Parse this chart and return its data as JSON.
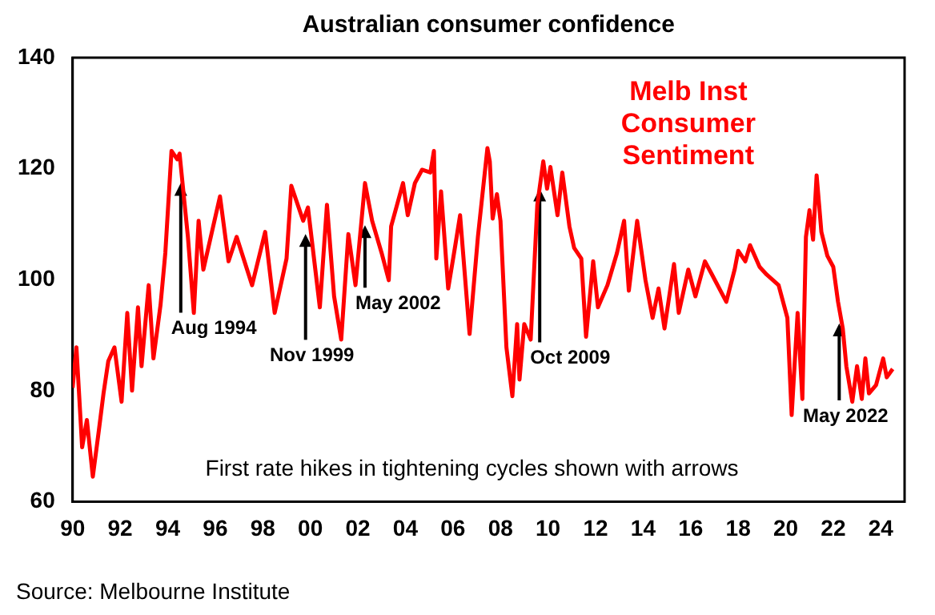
{
  "chart_data": {
    "type": "line",
    "title": "Australian consumer confidence",
    "x": [
      1990.0,
      1990.16,
      1990.4,
      1990.6,
      1990.85,
      1991.1,
      1991.3,
      1991.5,
      1991.76,
      1992.06,
      1992.3,
      1992.5,
      1992.75,
      1992.9,
      1993.2,
      1993.4,
      1993.7,
      1993.9,
      1994.16,
      1994.4,
      1994.5,
      1994.85,
      1995.1,
      1995.3,
      1995.5,
      1996.2,
      1996.56,
      1996.9,
      1997.55,
      1998.1,
      1998.5,
      1999.0,
      1999.2,
      1999.7,
      1999.9,
      2000.4,
      2000.7,
      2001.0,
      2001.3,
      2001.6,
      2001.9,
      2002.3,
      2002.6,
      2003.0,
      2003.3,
      2003.4,
      2003.9,
      2004.1,
      2004.4,
      2004.7,
      2005.05,
      2005.2,
      2005.3,
      2005.5,
      2005.8,
      2006.1,
      2006.3,
      2006.7,
      2007.05,
      2007.45,
      2007.55,
      2007.67,
      2007.85,
      2008.0,
      2008.25,
      2008.5,
      2008.7,
      2008.8,
      2009.0,
      2009.27,
      2009.55,
      2009.8,
      2009.96,
      2010.1,
      2010.4,
      2010.6,
      2010.9,
      2011.1,
      2011.4,
      2011.6,
      2011.9,
      2012.1,
      2012.5,
      2012.9,
      2013.2,
      2013.4,
      2013.75,
      2014.1,
      2014.4,
      2014.65,
      2014.9,
      2015.3,
      2015.5,
      2015.9,
      2016.2,
      2016.6,
      2016.9,
      2017.5,
      2017.85,
      2018.0,
      2018.3,
      2018.5,
      2018.9,
      2019.2,
      2019.7,
      2020.07,
      2020.25,
      2020.5,
      2020.7,
      2020.85,
      2021.0,
      2021.15,
      2021.3,
      2021.5,
      2021.75,
      2022.0,
      2022.2,
      2022.4,
      2022.55,
      2022.8,
      2023.0,
      2023.2,
      2023.35,
      2023.5,
      2023.8,
      2024.1,
      2024.25,
      2024.5
    ],
    "series": [
      {
        "name": "Melb Inst Consumer Sentiment",
        "color": "#ff0000",
        "values": [
          80.5,
          87.8,
          69.8,
          74.7,
          64.5,
          72.7,
          79.5,
          85.3,
          87.8,
          78,
          94,
          80,
          95,
          84.4,
          99,
          85.8,
          95.5,
          104.8,
          123.2,
          121.7,
          122.7,
          107.7,
          94,
          110.6,
          101.8,
          115,
          103.3,
          107.7,
          99,
          108.6,
          94,
          103.8,
          116.9,
          110.6,
          113,
          95,
          113.5,
          97,
          89.2,
          108.2,
          99,
          117.4,
          110.6,
          104.8,
          99.9,
          109.6,
          117.4,
          111.6,
          117.4,
          119.8,
          119.3,
          123.2,
          103.8,
          115.9,
          98.4,
          106.2,
          111.6,
          90.2,
          107.7,
          123.7,
          121.3,
          111,
          115.4,
          110.6,
          87.8,
          79,
          92,
          82,
          92,
          89.2,
          113.5,
          121.3,
          116.4,
          120.3,
          111.6,
          119.3,
          109.6,
          105.7,
          103.8,
          89.7,
          103.3,
          95,
          99,
          104.8,
          110.6,
          98,
          110.6,
          99.9,
          93.1,
          98.4,
          91.2,
          102.8,
          94,
          101.8,
          97,
          103.3,
          100.9,
          96,
          101.8,
          105.2,
          103.3,
          106.2,
          102.3,
          100.9,
          99,
          93.1,
          75.6,
          94,
          78.5,
          107.7,
          112.5,
          107.2,
          118.8,
          108.6,
          104.3,
          102.3,
          96,
          91.2,
          84.4,
          78,
          84.4,
          78.5,
          85.8,
          79.5,
          81,
          85.8,
          82.4,
          83.9
        ]
      }
    ],
    "xlim": [
      1990,
      2025
    ],
    "xticks": [
      {
        "value": 1990,
        "label": "90"
      },
      {
        "value": 1992,
        "label": "92"
      },
      {
        "value": 1994,
        "label": "94"
      },
      {
        "value": 1996,
        "label": "96"
      },
      {
        "value": 1998,
        "label": "98"
      },
      {
        "value": 2000,
        "label": "00"
      },
      {
        "value": 2002,
        "label": "02"
      },
      {
        "value": 2004,
        "label": "04"
      },
      {
        "value": 2006,
        "label": "06"
      },
      {
        "value": 2008,
        "label": "08"
      },
      {
        "value": 2010,
        "label": "10"
      },
      {
        "value": 2012,
        "label": "12"
      },
      {
        "value": 2014,
        "label": "14"
      },
      {
        "value": 2016,
        "label": "16"
      },
      {
        "value": 2018,
        "label": "18"
      },
      {
        "value": 2020,
        "label": "20"
      },
      {
        "value": 2022,
        "label": "22"
      },
      {
        "value": 2024,
        "label": "24"
      }
    ],
    "ylim": [
      60,
      140
    ],
    "yticks": [
      60,
      80,
      100,
      120,
      140
    ],
    "marker": "none",
    "line_style": "solid",
    "annotations": [
      {
        "text": "Aug 1994",
        "x": 1994.55,
        "y": 117.4
      },
      {
        "text": "Nov 1999",
        "x": 1999.8,
        "y": 108.2
      },
      {
        "text": "May 2002",
        "x": 2002.3,
        "y": 109.8
      },
      {
        "text": "Oct 2009",
        "x": 2009.65,
        "y": 116.4
      },
      {
        "text": "May 2022",
        "x": 2022.25,
        "y": 92.1
      },
      "First rate hikes in tightening cycles shown with arrows",
      "Source: Melbourne Institute"
    ]
  }
}
